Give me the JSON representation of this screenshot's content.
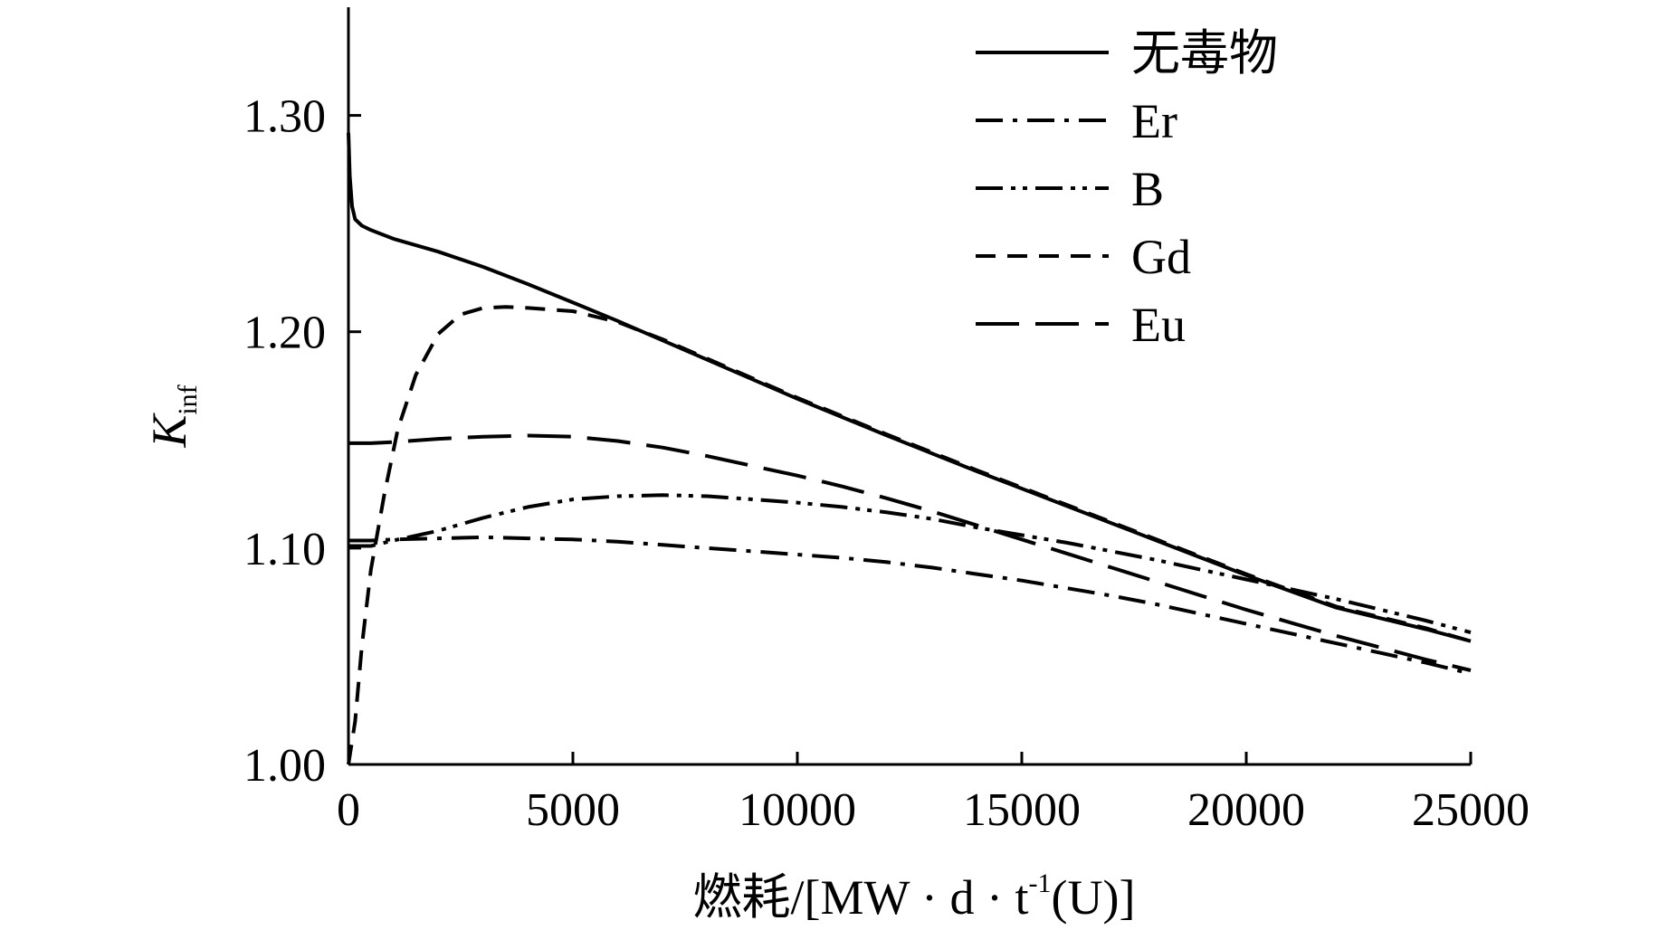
{
  "chart_data": {
    "type": "line",
    "xlabel": "燃耗/[MW · d · t⁻¹(U)]",
    "xlabel_parts": {
      "main": "燃耗/[MW · d · t",
      "sup": "-1",
      "tail": "(U)]"
    },
    "ylabel": "Kinf",
    "ylabel_parts": {
      "main": "K",
      "sub": "inf"
    },
    "xlim": [
      0,
      25000
    ],
    "ylim": [
      1.0,
      1.35
    ],
    "xticks": [
      0,
      5000,
      10000,
      15000,
      20000,
      25000
    ],
    "xtick_labels": [
      "0",
      "5000",
      "10000",
      "15000",
      "20000",
      "25000"
    ],
    "yticks": [
      1.0,
      1.1,
      1.2,
      1.3
    ],
    "ytick_labels": [
      "1.00",
      "1.10",
      "1.20",
      "1.30"
    ],
    "grid": false,
    "legend_position": "top-right",
    "series": [
      {
        "name": "无毒物",
        "dash": "solid",
        "points": [
          [
            0,
            1.292
          ],
          [
            30,
            1.272
          ],
          [
            80,
            1.258
          ],
          [
            150,
            1.252
          ],
          [
            300,
            1.249
          ],
          [
            500,
            1.247
          ],
          [
            1000,
            1.243
          ],
          [
            2000,
            1.237
          ],
          [
            3000,
            1.23
          ],
          [
            4000,
            1.222
          ],
          [
            5000,
            1.2135
          ],
          [
            6000,
            1.205
          ],
          [
            7000,
            1.196
          ],
          [
            8000,
            1.187
          ],
          [
            9000,
            1.178
          ],
          [
            10000,
            1.169
          ],
          [
            12000,
            1.152
          ],
          [
            14000,
            1.1355
          ],
          [
            16000,
            1.1195
          ],
          [
            18000,
            1.1035
          ],
          [
            20000,
            1.0875
          ],
          [
            22000,
            1.0725
          ],
          [
            24000,
            1.0625
          ],
          [
            25000,
            1.057
          ]
        ]
      },
      {
        "name": "Er",
        "dash": "dash-dot",
        "points": [
          [
            0,
            1.1035
          ],
          [
            500,
            1.1035
          ],
          [
            1000,
            1.104
          ],
          [
            2000,
            1.1045
          ],
          [
            3000,
            1.105
          ],
          [
            4000,
            1.1045
          ],
          [
            5000,
            1.104
          ],
          [
            6000,
            1.103
          ],
          [
            7000,
            1.1015
          ],
          [
            8000,
            1.1
          ],
          [
            9000,
            1.0985
          ],
          [
            10000,
            1.097
          ],
          [
            11000,
            1.0955
          ],
          [
            12000,
            1.0935
          ],
          [
            13000,
            1.091
          ],
          [
            14000,
            1.088
          ],
          [
            15000,
            1.085
          ],
          [
            16000,
            1.0815
          ],
          [
            17000,
            1.078
          ],
          [
            18000,
            1.074
          ],
          [
            19000,
            1.0695
          ],
          [
            20000,
            1.065
          ],
          [
            21000,
            1.0605
          ],
          [
            22000,
            1.056
          ],
          [
            23000,
            1.0515
          ],
          [
            24000,
            1.047
          ],
          [
            25000,
            1.042
          ]
        ]
      },
      {
        "name": "B",
        "dash": "dash-dot-dot",
        "points": [
          [
            0,
            1.101
          ],
          [
            500,
            1.101
          ],
          [
            1000,
            1.1035
          ],
          [
            2000,
            1.108
          ],
          [
            3000,
            1.114
          ],
          [
            4000,
            1.119
          ],
          [
            5000,
            1.1225
          ],
          [
            6000,
            1.124
          ],
          [
            7000,
            1.1245
          ],
          [
            8000,
            1.124
          ],
          [
            9000,
            1.1225
          ],
          [
            10000,
            1.121
          ],
          [
            11000,
            1.119
          ],
          [
            12000,
            1.1165
          ],
          [
            13000,
            1.1135
          ],
          [
            14000,
            1.1095
          ],
          [
            15000,
            1.106
          ],
          [
            16000,
            1.1025
          ],
          [
            17000,
            1.0985
          ],
          [
            18000,
            1.0945
          ],
          [
            19000,
            1.09
          ],
          [
            20000,
            1.0855
          ],
          [
            21000,
            1.081
          ],
          [
            22000,
            1.0765
          ],
          [
            23000,
            1.0715
          ],
          [
            24000,
            1.0665
          ],
          [
            25000,
            1.061
          ]
        ]
      },
      {
        "name": "Gd",
        "dash": "dash",
        "points": [
          [
            0,
            1.0
          ],
          [
            150,
            1.02
          ],
          [
            300,
            1.055
          ],
          [
            500,
            1.09
          ],
          [
            800,
            1.125
          ],
          [
            1100,
            1.155
          ],
          [
            1500,
            1.18
          ],
          [
            2000,
            1.199
          ],
          [
            2500,
            1.208
          ],
          [
            3000,
            1.211
          ],
          [
            3500,
            1.2115
          ],
          [
            4000,
            1.211
          ],
          [
            5000,
            1.2095
          ],
          [
            6000,
            1.2045
          ],
          [
            7000,
            1.1965
          ],
          [
            8000,
            1.1875
          ],
          [
            9000,
            1.1785
          ],
          [
            10000,
            1.1695
          ],
          [
            12000,
            1.1525
          ],
          [
            14000,
            1.136
          ],
          [
            16000,
            1.12
          ],
          [
            18000,
            1.104
          ],
          [
            20000,
            1.088
          ],
          [
            22000,
            1.073
          ],
          [
            24000,
            1.063
          ],
          [
            25000,
            1.057
          ]
        ]
      },
      {
        "name": "Eu",
        "dash": "long-dash",
        "points": [
          [
            0,
            1.1485
          ],
          [
            500,
            1.1485
          ],
          [
            1000,
            1.149
          ],
          [
            2000,
            1.1505
          ],
          [
            3000,
            1.1515
          ],
          [
            4000,
            1.152
          ],
          [
            5000,
            1.1515
          ],
          [
            6000,
            1.1495
          ],
          [
            7000,
            1.1465
          ],
          [
            8000,
            1.1425
          ],
          [
            9000,
            1.138
          ],
          [
            10000,
            1.1335
          ],
          [
            11000,
            1.1285
          ],
          [
            12000,
            1.123
          ],
          [
            13000,
            1.117
          ],
          [
            14000,
            1.1105
          ],
          [
            15000,
            1.104
          ],
          [
            16000,
            1.0975
          ],
          [
            17000,
            1.091
          ],
          [
            18000,
            1.0845
          ],
          [
            19000,
            1.078
          ],
          [
            20000,
            1.0715
          ],
          [
            21000,
            1.0655
          ],
          [
            22000,
            1.0595
          ],
          [
            23000,
            1.054
          ],
          [
            24000,
            1.0485
          ],
          [
            25000,
            1.0435
          ]
        ]
      }
    ]
  }
}
